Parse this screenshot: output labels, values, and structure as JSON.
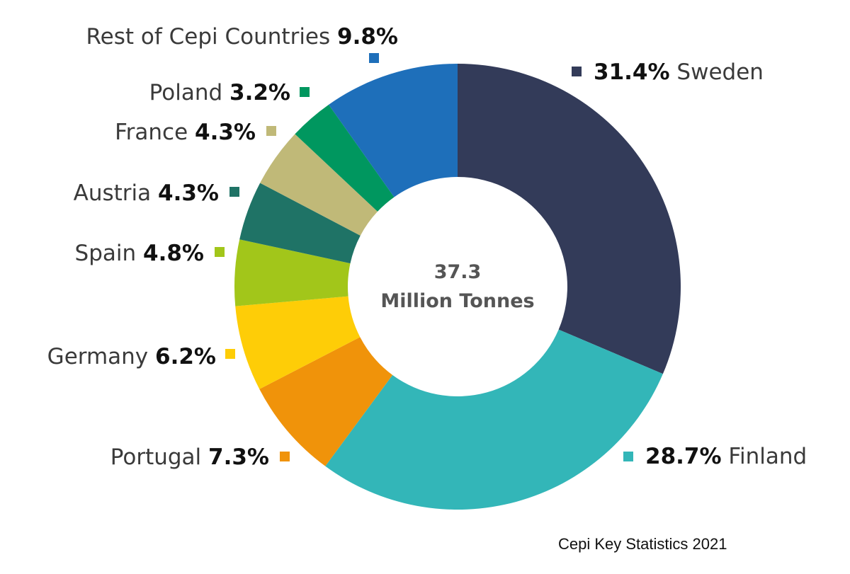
{
  "chart_data": {
    "type": "pie",
    "variant": "donut",
    "center_label": {
      "value": "37.3",
      "unit": "Million Tonnes"
    },
    "slices": [
      {
        "name": "Sweden",
        "value": 31.4,
        "label": "31.4%",
        "color": "#333b59"
      },
      {
        "name": "Finland",
        "value": 28.7,
        "label": "28.7%",
        "color": "#33b6b8"
      },
      {
        "name": "Portugal",
        "value": 7.3,
        "label": "7.3%",
        "color": "#f0930a"
      },
      {
        "name": "Germany",
        "value": 6.2,
        "label": "6.2%",
        "color": "#fecd07"
      },
      {
        "name": "Spain",
        "value": 4.8,
        "label": "4.8%",
        "color": "#a2c61a"
      },
      {
        "name": "Austria",
        "value": 4.3,
        "label": "4.3%",
        "color": "#1f7366"
      },
      {
        "name": "France",
        "value": 4.3,
        "label": "4.3%",
        "color": "#c0b978"
      },
      {
        "name": "Poland",
        "value": 3.2,
        "label": "3.2%",
        "color": "#00975f"
      },
      {
        "name": "Rest of Cepi Countries",
        "value": 9.8,
        "label": "9.8%",
        "color": "#1e6fba"
      }
    ],
    "source": "Cepi Key Statistics 2021"
  }
}
